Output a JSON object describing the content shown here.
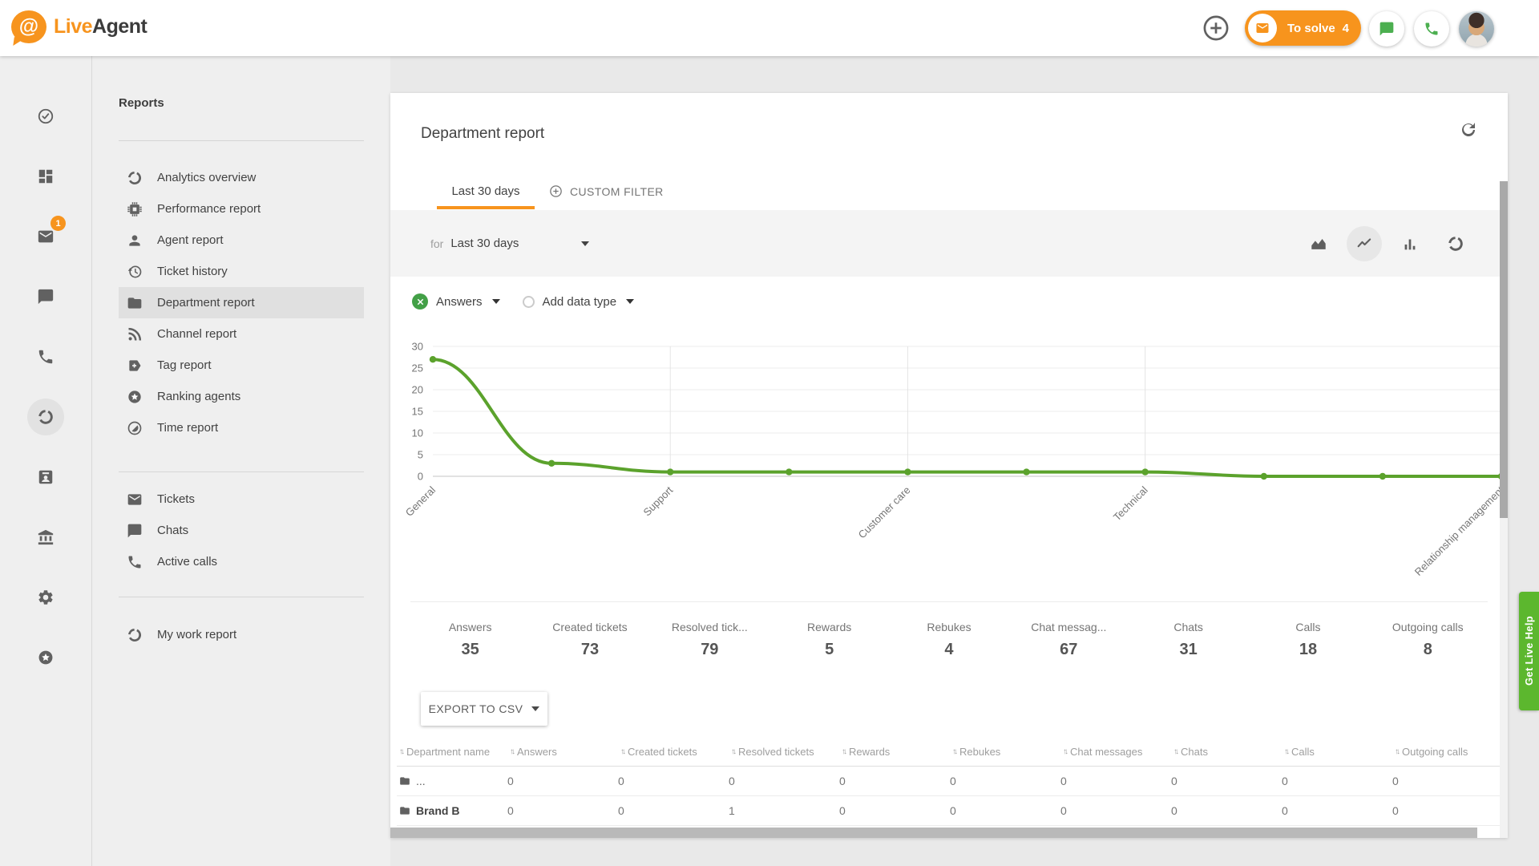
{
  "header": {
    "logo": {
      "at_symbol": "@",
      "brand_live": "Live",
      "brand_agent": "Agent"
    },
    "to_solve_label": "To solve",
    "to_solve_count": "4"
  },
  "rail": {
    "items": [
      {
        "icon": "check-circle",
        "name": "tasks"
      },
      {
        "icon": "dashboard",
        "name": "dashboard"
      },
      {
        "icon": "mail",
        "name": "tickets",
        "badge": "1"
      },
      {
        "icon": "chat",
        "name": "chats"
      },
      {
        "icon": "phone",
        "name": "calls"
      },
      {
        "icon": "donut",
        "name": "reports",
        "active": true
      },
      {
        "icon": "contact-card",
        "name": "contacts"
      },
      {
        "icon": "bank",
        "name": "company"
      },
      {
        "icon": "gear",
        "name": "settings"
      },
      {
        "icon": "star-circle",
        "name": "upgrade"
      }
    ]
  },
  "menu": {
    "title": "Reports",
    "sections": [
      {
        "items": [
          {
            "icon": "donut",
            "label": "Analytics overview"
          },
          {
            "icon": "chip",
            "label": "Performance report"
          },
          {
            "icon": "person",
            "label": "Agent report"
          },
          {
            "icon": "history",
            "label": "Ticket history"
          },
          {
            "icon": "folder",
            "label": "Department report",
            "selected": true
          },
          {
            "icon": "rss",
            "label": "Channel report"
          },
          {
            "icon": "tag",
            "label": "Tag report"
          },
          {
            "icon": "star-circle",
            "label": "Ranking agents"
          },
          {
            "icon": "timelapse",
            "label": "Time report"
          }
        ]
      },
      {
        "items": [
          {
            "icon": "mail",
            "label": "Tickets"
          },
          {
            "icon": "chat",
            "label": "Chats"
          },
          {
            "icon": "phone",
            "label": "Active calls"
          }
        ]
      },
      {
        "items": [
          {
            "icon": "donut",
            "label": "My work report"
          }
        ]
      }
    ]
  },
  "panel": {
    "title": "Department report",
    "tabs": [
      {
        "label": "Last 30 days",
        "active": true
      },
      {
        "label": "CUSTOM FILTER"
      }
    ],
    "filter_prefix": "for",
    "filter_value": "Last 30 days",
    "legend_series": "Answers",
    "legend_add": "Add data type",
    "stats": [
      {
        "label": "Answers",
        "value": "35"
      },
      {
        "label": "Created tickets",
        "value": "73"
      },
      {
        "label": "Resolved tick...",
        "value": "79"
      },
      {
        "label": "Rewards",
        "value": "5"
      },
      {
        "label": "Rebukes",
        "value": "4"
      },
      {
        "label": "Chat messag...",
        "value": "67"
      },
      {
        "label": "Chats",
        "value": "31"
      },
      {
        "label": "Calls",
        "value": "18"
      },
      {
        "label": "Outgoing calls",
        "value": "8"
      }
    ],
    "export_label": "EXPORT TO CSV",
    "table": {
      "columns": [
        "Department name",
        "Answers",
        "Created tickets",
        "Resolved tickets",
        "Rewards",
        "Rebukes",
        "Chat messages",
        "Chats",
        "Calls",
        "Outgoing calls"
      ],
      "rows": [
        {
          "name": "...",
          "bold": false,
          "values": [
            "0",
            "0",
            "0",
            "0",
            "0",
            "0",
            "0",
            "0",
            "0"
          ]
        },
        {
          "name": "Brand B",
          "bold": true,
          "values": [
            "0",
            "0",
            "1",
            "0",
            "0",
            "0",
            "0",
            "0",
            "0"
          ]
        }
      ]
    }
  },
  "get_live_help": "Get Live Help",
  "chart_data": {
    "type": "line",
    "categories": [
      "General",
      "",
      "Support",
      "",
      "Customer care",
      "",
      "Technical",
      "",
      "",
      "Relationship management"
    ],
    "series": [
      {
        "name": "Answers",
        "values": [
          27,
          3,
          1,
          1,
          1,
          1,
          1,
          0,
          0,
          0
        ]
      }
    ],
    "yticks": [
      0,
      5,
      10,
      15,
      20,
      25,
      30
    ],
    "ylim": [
      0,
      30
    ],
    "grid": true,
    "line_color": "#5ba22c",
    "legend_position": "top-left"
  },
  "colors": {
    "accent_orange": "#f7941d",
    "header_icon_green": "#4caf50",
    "chart_green": "#5ba22c",
    "legend_remove_green": "#43a047",
    "help_green": "#5cb72e"
  }
}
